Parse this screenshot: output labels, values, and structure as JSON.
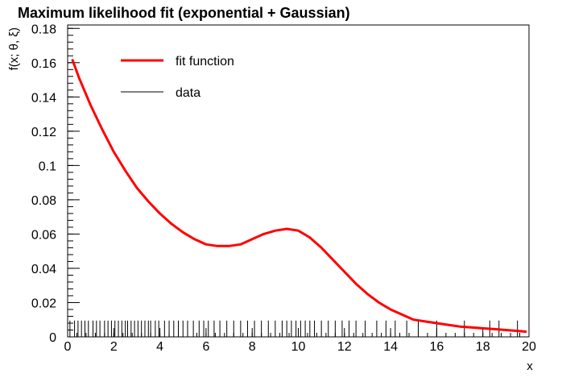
{
  "chart_data": {
    "type": "line",
    "title": "Maximum likelihood fit (exponential + Gaussian)",
    "xlabel": "x",
    "ylabel": "f(x; θ, ξ)",
    "xlim": [
      0,
      20
    ],
    "ylim": [
      0,
      0.182
    ],
    "xticks": [
      "0",
      "2",
      "4",
      "6",
      "8",
      "10",
      "12",
      "14",
      "16",
      "18",
      "20"
    ],
    "yticks": [
      "0",
      "0.02",
      "0.04",
      "0.06",
      "0.08",
      "0.1",
      "0.12",
      "0.14",
      "0.16",
      "0.18"
    ],
    "legend": [
      {
        "label": "fit function",
        "color": "#ff0000",
        "style": "thick-line"
      },
      {
        "label": "data",
        "color": "#000000",
        "style": "thin-line"
      }
    ],
    "legend_position": "top-left",
    "grid": false,
    "series": [
      {
        "name": "fit function",
        "color": "#ff0000",
        "x": [
          0.2,
          0.5,
          1,
          1.5,
          2,
          2.5,
          3,
          3.5,
          4,
          4.5,
          5,
          5.5,
          6,
          6.5,
          7,
          7.5,
          8,
          8.5,
          9,
          9.5,
          10,
          10.5,
          11,
          11.5,
          12,
          12.5,
          13,
          13.5,
          14,
          14.5,
          15,
          15.5,
          16,
          16.5,
          17,
          17.5,
          18,
          18.5,
          19,
          19.5,
          19.9
        ],
        "y": [
          0.162,
          0.151,
          0.135,
          0.121,
          0.108,
          0.097,
          0.087,
          0.079,
          0.072,
          0.066,
          0.061,
          0.057,
          0.054,
          0.053,
          0.053,
          0.054,
          0.057,
          0.06,
          0.062,
          0.063,
          0.062,
          0.058,
          0.052,
          0.045,
          0.038,
          0.031,
          0.025,
          0.02,
          0.016,
          0.013,
          0.01,
          0.009,
          0.008,
          0.007,
          0.006,
          0.0055,
          0.005,
          0.0045,
          0.004,
          0.0035,
          0.003
        ]
      }
    ],
    "data": {
      "name": "data",
      "color": "#000000",
      "rug_height": 0.0095,
      "x": [
        0.1,
        0.3,
        0.45,
        0.6,
        0.75,
        0.9,
        1.1,
        1.25,
        1.4,
        1.6,
        1.75,
        1.9,
        2.05,
        2.2,
        2.35,
        2.5,
        2.6,
        2.75,
        2.9,
        3.05,
        3.2,
        3.35,
        3.5,
        3.6,
        3.8,
        3.95,
        4.2,
        4.4,
        4.6,
        4.8,
        5.0,
        5.2,
        5.45,
        5.7,
        5.9,
        6.1,
        6.35,
        6.6,
        6.9,
        7.2,
        7.5,
        7.8,
        8.1,
        8.4,
        8.7,
        9.0,
        9.3,
        9.5,
        9.7,
        9.9,
        10.1,
        10.3,
        10.5,
        10.7,
        11.0,
        11.3,
        11.6,
        11.9,
        12.2,
        12.5,
        12.9,
        13.4,
        13.8,
        14.2,
        14.7,
        15.2,
        16.0,
        17.2,
        18.3,
        18.7,
        19.5
      ]
    }
  }
}
